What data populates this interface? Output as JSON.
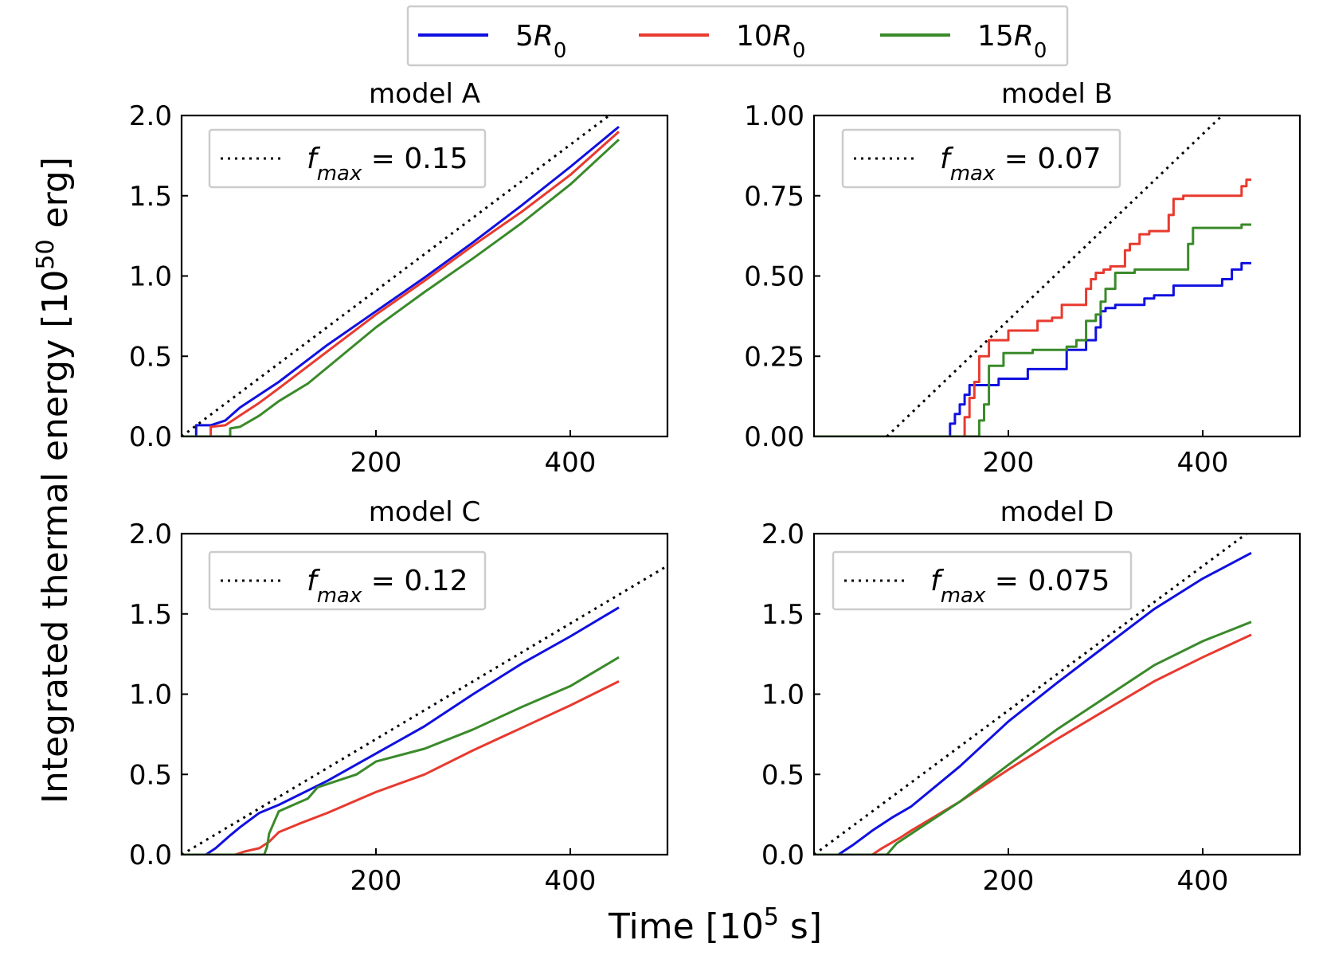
{
  "colors": {
    "5R0": "#1010e0",
    "10R0": "#e83a2f",
    "15R0": "#3a8a2a",
    "reference": "#000000"
  },
  "legend": {
    "placement": "top-center",
    "entries": [
      {
        "key": "5R0",
        "coef": "5",
        "sym": "R",
        "sub": "0"
      },
      {
        "key": "10R0",
        "coef": "10",
        "sym": "R",
        "sub": "0"
      },
      {
        "key": "15R0",
        "coef": "15",
        "sym": "R",
        "sub": "0"
      }
    ]
  },
  "xlabel": {
    "text": "Time [10",
    "sup": "5",
    "tail": " s]"
  },
  "ylabel": {
    "text": "Integrated thermal energy [10",
    "sup": "50",
    "tail": " erg]"
  },
  "chart_data": [
    {
      "type": "line",
      "title": "model A",
      "xlim": [
        0,
        500
      ],
      "ylim": [
        0,
        2.0
      ],
      "xticks": [
        "200",
        "400"
      ],
      "xtick_values": [
        200,
        400
      ],
      "yticks": [
        "0.0",
        "0.5",
        "1.0",
        "1.5",
        "2.0"
      ],
      "ytick_values": [
        0,
        0.5,
        1.0,
        1.5,
        2.0
      ],
      "reference": {
        "label_sym": "f",
        "label_sub": "max",
        "label_value": "= 0.15",
        "x": [
          0,
          440
        ],
        "y": [
          0,
          2.0
        ]
      },
      "series": [
        {
          "key": "5R0",
          "x": [
            0,
            15,
            15,
            30,
            45,
            60,
            80,
            100,
            150,
            200,
            250,
            300,
            350,
            400,
            450
          ],
          "y": [
            0,
            0,
            0.07,
            0.07,
            0.1,
            0.18,
            0.26,
            0.34,
            0.57,
            0.78,
            0.99,
            1.21,
            1.44,
            1.68,
            1.93
          ]
        },
        {
          "key": "10R0",
          "x": [
            0,
            30,
            30,
            45,
            60,
            80,
            100,
            150,
            200,
            250,
            300,
            350,
            400,
            450
          ],
          "y": [
            0,
            0,
            0.06,
            0.07,
            0.13,
            0.21,
            0.3,
            0.53,
            0.76,
            0.97,
            1.19,
            1.4,
            1.63,
            1.9
          ]
        },
        {
          "key": "15R0",
          "x": [
            0,
            50,
            50,
            60,
            80,
            100,
            130,
            150,
            200,
            250,
            300,
            350,
            400,
            450
          ],
          "y": [
            0,
            0,
            0.05,
            0.06,
            0.13,
            0.22,
            0.33,
            0.43,
            0.68,
            0.9,
            1.11,
            1.33,
            1.57,
            1.85
          ]
        }
      ]
    },
    {
      "type": "line",
      "title": "model B",
      "xlim": [
        0,
        500
      ],
      "ylim": [
        0,
        1.0
      ],
      "xticks": [
        "200",
        "400"
      ],
      "xtick_values": [
        200,
        400
      ],
      "yticks": [
        "0.00",
        "0.25",
        "0.50",
        "0.75",
        "1.00"
      ],
      "ytick_values": [
        0,
        0.25,
        0.5,
        0.75,
        1.0
      ],
      "reference": {
        "label_sym": "f",
        "label_sub": "max",
        "label_value": "= 0.07",
        "x": [
          75,
          420
        ],
        "y": [
          0,
          1.0
        ]
      },
      "series": [
        {
          "key": "5R0",
          "x": [
            0,
            140,
            140,
            145,
            145,
            150,
            150,
            155,
            155,
            160,
            160,
            190,
            190,
            220,
            220,
            260,
            260,
            280,
            280,
            290,
            290,
            295,
            295,
            300,
            300,
            310,
            310,
            340,
            340,
            350,
            350,
            370,
            370,
            420,
            420,
            430,
            430,
            440,
            440,
            450
          ],
          "y": [
            0,
            0,
            0.04,
            0.04,
            0.07,
            0.07,
            0.1,
            0.1,
            0.13,
            0.13,
            0.16,
            0.16,
            0.18,
            0.18,
            0.21,
            0.21,
            0.27,
            0.27,
            0.3,
            0.3,
            0.34,
            0.34,
            0.39,
            0.39,
            0.4,
            0.4,
            0.41,
            0.41,
            0.43,
            0.43,
            0.44,
            0.44,
            0.47,
            0.47,
            0.49,
            0.49,
            0.52,
            0.52,
            0.54,
            0.54
          ]
        },
        {
          "key": "10R0",
          "x": [
            0,
            155,
            155,
            160,
            160,
            165,
            165,
            170,
            170,
            180,
            180,
            200,
            200,
            230,
            230,
            245,
            245,
            255,
            255,
            280,
            280,
            285,
            285,
            290,
            290,
            298,
            298,
            305,
            305,
            320,
            320,
            325,
            325,
            335,
            335,
            345,
            345,
            365,
            365,
            370,
            370,
            380,
            380,
            440,
            440,
            445,
            445,
            450
          ],
          "y": [
            0,
            0,
            0.06,
            0.06,
            0.12,
            0.12,
            0.17,
            0.17,
            0.25,
            0.25,
            0.3,
            0.3,
            0.33,
            0.33,
            0.36,
            0.36,
            0.37,
            0.37,
            0.41,
            0.41,
            0.46,
            0.46,
            0.49,
            0.49,
            0.51,
            0.51,
            0.52,
            0.52,
            0.53,
            0.53,
            0.58,
            0.58,
            0.6,
            0.6,
            0.63,
            0.63,
            0.64,
            0.64,
            0.69,
            0.69,
            0.74,
            0.74,
            0.75,
            0.75,
            0.78,
            0.78,
            0.8,
            0.8
          ]
        },
        {
          "key": "15R0",
          "x": [
            0,
            170,
            170,
            175,
            175,
            180,
            180,
            195,
            195,
            225,
            225,
            260,
            260,
            270,
            270,
            280,
            280,
            290,
            290,
            295,
            295,
            300,
            300,
            310,
            310,
            330,
            330,
            385,
            385,
            390,
            390,
            440,
            440,
            450
          ],
          "y": [
            0,
            0,
            0.05,
            0.05,
            0.1,
            0.1,
            0.22,
            0.22,
            0.26,
            0.26,
            0.27,
            0.27,
            0.28,
            0.28,
            0.3,
            0.3,
            0.36,
            0.36,
            0.38,
            0.38,
            0.42,
            0.42,
            0.46,
            0.46,
            0.51,
            0.51,
            0.52,
            0.52,
            0.6,
            0.6,
            0.65,
            0.65,
            0.66,
            0.66
          ]
        }
      ]
    },
    {
      "type": "line",
      "title": "model C",
      "xlim": [
        0,
        500
      ],
      "ylim": [
        0,
        2.0
      ],
      "xticks": [
        "200",
        "400"
      ],
      "xtick_values": [
        200,
        400
      ],
      "yticks": [
        "0.0",
        "0.5",
        "1.0",
        "1.5",
        "2.0"
      ],
      "ytick_values": [
        0,
        0.5,
        1.0,
        1.5,
        2.0
      ],
      "reference": {
        "label_sym": "f",
        "label_sub": "max",
        "label_value": "= 0.12",
        "x": [
          0,
          500
        ],
        "y": [
          0,
          1.8
        ]
      },
      "series": [
        {
          "key": "5R0",
          "x": [
            0,
            25,
            35,
            50,
            60,
            80,
            100,
            150,
            200,
            250,
            300,
            350,
            400,
            450
          ],
          "y": [
            0,
            0,
            0.04,
            0.12,
            0.17,
            0.26,
            0.31,
            0.46,
            0.63,
            0.8,
            1.0,
            1.19,
            1.36,
            1.54
          ]
        },
        {
          "key": "10R0",
          "x": [
            0,
            55,
            65,
            80,
            90,
            100,
            120,
            150,
            200,
            250,
            300,
            350,
            400,
            450
          ],
          "y": [
            0,
            0,
            0.02,
            0.04,
            0.08,
            0.14,
            0.19,
            0.26,
            0.39,
            0.5,
            0.65,
            0.79,
            0.93,
            1.08
          ]
        },
        {
          "key": "15R0",
          "x": [
            0,
            85,
            88,
            90,
            100,
            130,
            140,
            160,
            180,
            200,
            250,
            300,
            350,
            400,
            450
          ],
          "y": [
            0,
            0,
            0.05,
            0.13,
            0.27,
            0.35,
            0.42,
            0.46,
            0.5,
            0.58,
            0.66,
            0.78,
            0.92,
            1.05,
            1.23
          ]
        }
      ]
    },
    {
      "type": "line",
      "title": "model D",
      "xlim": [
        0,
        500
      ],
      "ylim": [
        0,
        2.0
      ],
      "xticks": [
        "200",
        "400"
      ],
      "xtick_values": [
        200,
        400
      ],
      "yticks": [
        "0.0",
        "0.5",
        "1.0",
        "1.5",
        "2.0"
      ],
      "ytick_values": [
        0,
        0.5,
        1.0,
        1.5,
        2.0
      ],
      "reference": {
        "label_sym": "f",
        "label_sub": "max",
        "label_value": "= 0.075",
        "x": [
          0,
          445
        ],
        "y": [
          0,
          2.0
        ]
      },
      "series": [
        {
          "key": "5R0",
          "x": [
            0,
            25,
            40,
            60,
            80,
            100,
            150,
            200,
            250,
            300,
            350,
            400,
            450
          ],
          "y": [
            0,
            0,
            0.06,
            0.15,
            0.23,
            0.3,
            0.55,
            0.83,
            1.07,
            1.3,
            1.53,
            1.72,
            1.88
          ]
        },
        {
          "key": "10R0",
          "x": [
            0,
            60,
            70,
            90,
            100,
            150,
            200,
            250,
            300,
            350,
            400,
            450
          ],
          "y": [
            0,
            0,
            0.04,
            0.11,
            0.15,
            0.33,
            0.53,
            0.72,
            0.9,
            1.08,
            1.23,
            1.37
          ]
        },
        {
          "key": "15R0",
          "x": [
            0,
            75,
            85,
            100,
            150,
            200,
            250,
            300,
            350,
            400,
            450
          ],
          "y": [
            0,
            0,
            0.07,
            0.13,
            0.33,
            0.56,
            0.78,
            0.98,
            1.18,
            1.33,
            1.45
          ]
        }
      ]
    }
  ]
}
